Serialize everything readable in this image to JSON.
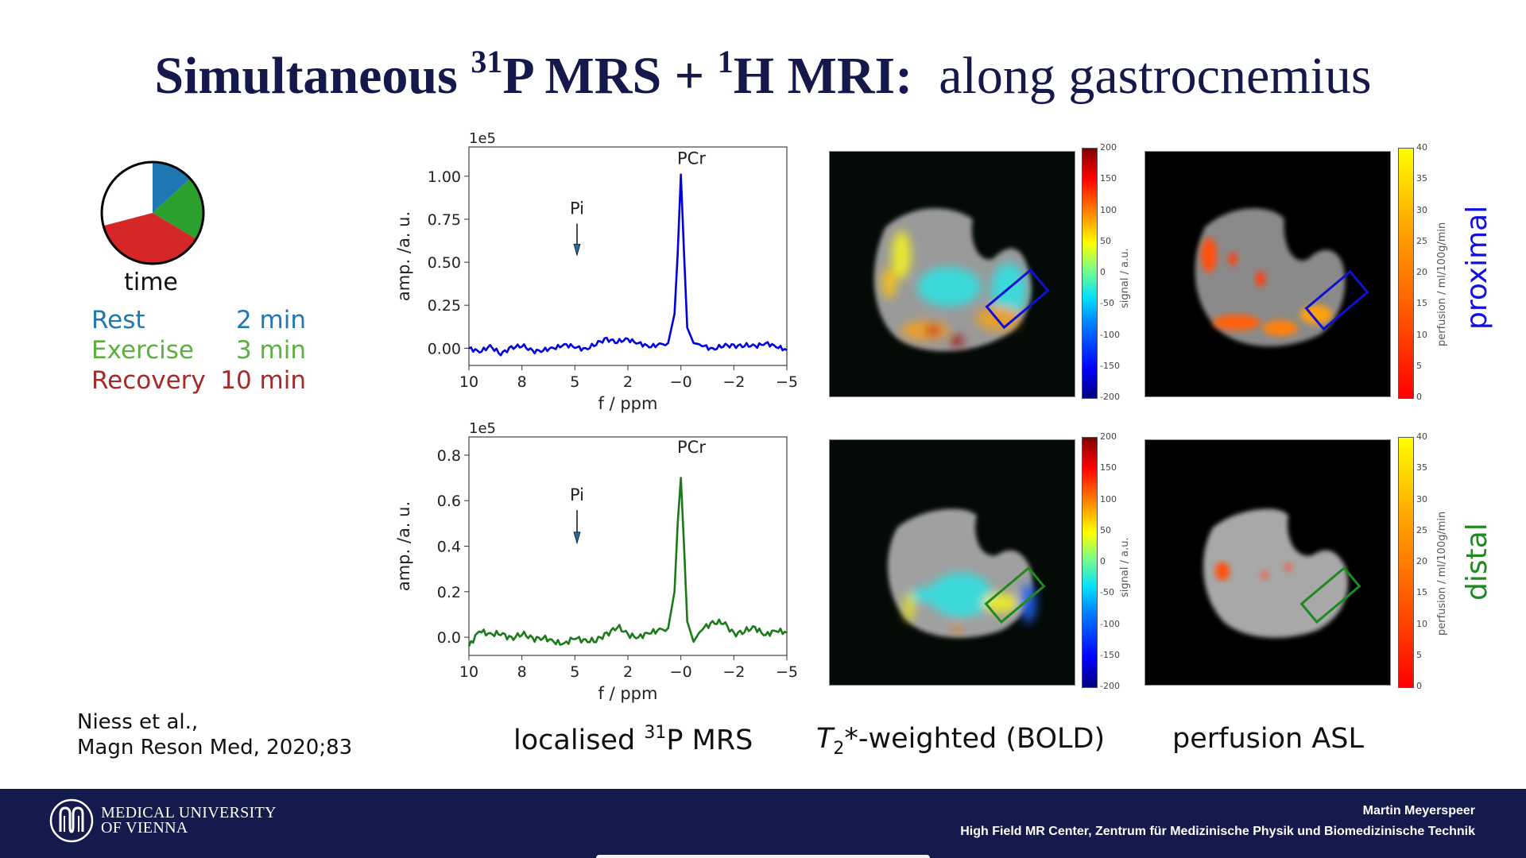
{
  "title": {
    "part1": "Simultaneous ",
    "sup1": "31",
    "part2": "P MRS + ",
    "sup2": "1",
    "part3": "H MRI:",
    "part4": "  along gastrocnemius",
    "color": "#14184a"
  },
  "protocol": {
    "pie_label": "time",
    "phases": [
      {
        "name": "Rest",
        "duration": "2 min",
        "color": "#1f77b4"
      },
      {
        "name": "Exercise",
        "duration": "3 min",
        "color": "#5cb040"
      },
      {
        "name": "Recovery",
        "duration": "10 min",
        "color": "#a52a2a"
      }
    ],
    "pie_colors": {
      "rest": "#1f77b4",
      "exercise": "#2ca02c",
      "recovery": "#d62728",
      "remaining": "#ffffff"
    }
  },
  "citation": {
    "line1": "Niess et al.,",
    "line2": "Magn Reson Med, 2020;83"
  },
  "captions": {
    "mrs_pre": "localised ",
    "mrs_sup": "31",
    "mrs_post": "P MRS",
    "bold_T": "T",
    "bold_sub": "2",
    "bold_post": "*-weighted (BOLD)",
    "asl": "perfusion ASL"
  },
  "rows": {
    "proximal": {
      "label": "proximal",
      "color": "#1010e0"
    },
    "distal": {
      "label": "distal",
      "color": "#1f8a1f"
    }
  },
  "colorbars": {
    "bold": {
      "label": "signal  /  a.u.",
      "ticks": [
        "200",
        "150",
        "100",
        "50",
        "0",
        "-50",
        "-100",
        "-150",
        "-200"
      ]
    },
    "asl": {
      "label": "perfusion  /  ml/100g/min",
      "ticks": [
        "40",
        "35",
        "30",
        "25",
        "20",
        "15",
        "10",
        "5",
        "0"
      ]
    }
  },
  "chart_data": [
    {
      "type": "line",
      "title": "proximal 31P spectrum",
      "xlabel": "f / ppm",
      "ylabel": "amp. /a. u.",
      "y_scale_label": "1e5",
      "xlim": [
        10,
        -5
      ],
      "ylim": [
        -0.1,
        1.17
      ],
      "xticks": [
        "10",
        "8",
        "5",
        "2",
        "−0",
        "−2",
        "−5"
      ],
      "yticks": [
        "0.00",
        "0.25",
        "0.50",
        "0.75",
        "1.00"
      ],
      "series": [
        {
          "name": "proximal",
          "color": "#0000dd",
          "x": [
            10,
            9.5,
            9.0,
            8.5,
            8.0,
            7.5,
            7.0,
            6.5,
            6.0,
            5.5,
            5.0,
            4.5,
            4.0,
            3.5,
            3.0,
            2.5,
            2.0,
            1.5,
            1.0,
            0.6,
            0.3,
            0.15,
            0.0,
            -0.15,
            -0.3,
            -0.6,
            -1.0,
            -1.5,
            -2.0,
            -2.5,
            -3.0,
            -3.5,
            -4.0,
            -4.5,
            -5.0
          ],
          "values": [
            0.0,
            -0.02,
            0.01,
            -0.03,
            0.0,
            0.02,
            -0.02,
            -0.01,
            0.0,
            0.02,
            0.01,
            -0.01,
            0.03,
            0.05,
            0.04,
            0.05,
            0.03,
            0.01,
            0.02,
            0.03,
            0.2,
            0.55,
            1.01,
            0.55,
            0.12,
            0.03,
            0.02,
            -0.01,
            0.02,
            0.01,
            0.02,
            0.01,
            0.03,
            0.01,
            -0.01
          ]
        }
      ],
      "annotations": [
        {
          "text": "PCr",
          "x": -0.5,
          "y": 1.07
        },
        {
          "text": "Pi",
          "x": 4.9,
          "y": 0.78,
          "arrow_to_y": 0.55
        }
      ]
    },
    {
      "type": "line",
      "title": "distal 31P spectrum",
      "xlabel": "f / ppm",
      "ylabel": "amp. /a. u.",
      "y_scale_label": "1e5",
      "xlim": [
        10,
        -5
      ],
      "ylim": [
        -0.08,
        0.88
      ],
      "xticks": [
        "10",
        "8",
        "5",
        "2",
        "−0",
        "−2",
        "−5"
      ],
      "yticks": [
        "0.0",
        "0.2",
        "0.4",
        "0.6",
        "0.8"
      ],
      "series": [
        {
          "name": "distal",
          "color": "#1a7a1a",
          "x": [
            10,
            9.5,
            9.0,
            8.5,
            8.0,
            7.5,
            7.0,
            6.5,
            6.0,
            5.5,
            5.0,
            4.5,
            4.0,
            3.5,
            3.0,
            2.5,
            2.0,
            1.5,
            1.0,
            0.6,
            0.3,
            0.15,
            0.0,
            -0.15,
            -0.3,
            -0.6,
            -1.0,
            -1.5,
            -2.0,
            -2.5,
            -3.0,
            -3.5,
            -4.0,
            -4.5,
            -5.0
          ],
          "values": [
            -0.04,
            0.03,
            0.01,
            0.02,
            -0.01,
            0.02,
            -0.01,
            0.0,
            -0.02,
            -0.03,
            0.0,
            -0.02,
            -0.01,
            0.01,
            0.05,
            0.01,
            0.0,
            0.02,
            0.03,
            0.04,
            0.2,
            0.5,
            0.7,
            0.4,
            0.07,
            -0.02,
            0.04,
            0.06,
            0.07,
            0.01,
            0.03,
            0.04,
            0.01,
            0.03,
            0.02
          ]
        }
      ],
      "annotations": [
        {
          "text": "PCr",
          "x": -0.5,
          "y": 0.81
        },
        {
          "text": "Pi",
          "x": 4.9,
          "y": 0.6,
          "arrow_to_y": 0.42
        }
      ]
    }
  ],
  "footer": {
    "logo_line1": "MEDICAL UNIVERSITY",
    "logo_line2": "OF VIENNA",
    "author": "Martin Meyerspeer",
    "institute": "High Field MR Center, Zentrum für Medizinische Physik und Biomedizinische Technik",
    "background": "#141a4c"
  }
}
